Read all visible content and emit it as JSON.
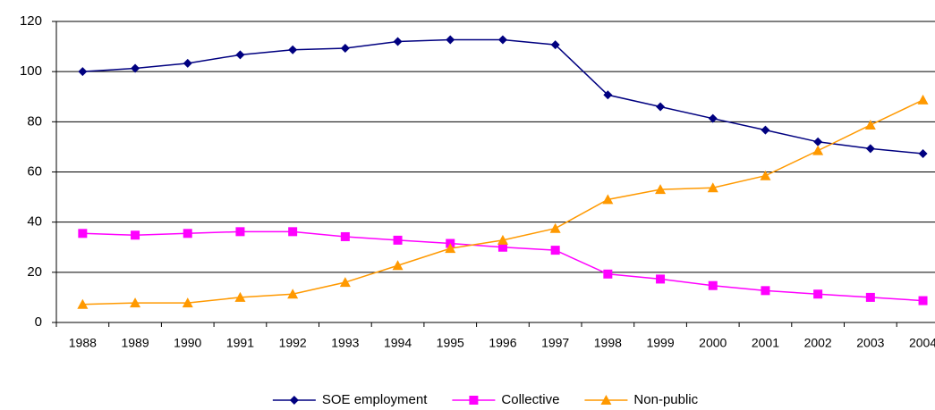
{
  "chart_data": {
    "type": "line",
    "categories": [
      "1988",
      "1989",
      "1990",
      "1991",
      "1992",
      "1993",
      "1994",
      "1995",
      "1996",
      "1997",
      "1998",
      "1999",
      "2000",
      "2001",
      "2002",
      "2003",
      "2004"
    ],
    "series": [
      {
        "name": "SOE employment",
        "color": "#000080",
        "marker": "diamond",
        "values": [
          100,
          101.3,
          103.3,
          106.7,
          108.7,
          109.3,
          112,
          112.7,
          112.7,
          110.7,
          90.7,
          86,
          81.3,
          76.7,
          72,
          69.3,
          67.3
        ]
      },
      {
        "name": "Collective",
        "color": "#ff00ff",
        "marker": "square",
        "values": [
          35.5,
          34.8,
          35.5,
          36.2,
          36.2,
          34.2,
          32.8,
          31.5,
          30,
          28.8,
          19.3,
          17.3,
          14.7,
          12.7,
          11.3,
          10,
          8.7
        ]
      },
      {
        "name": "Non-public",
        "color": "#ff9900",
        "marker": "triangle",
        "values": [
          7.2,
          7.8,
          7.8,
          10,
          11.3,
          16,
          22.7,
          29.5,
          32.8,
          37.5,
          49,
          53,
          53.7,
          58.5,
          68.5,
          78.7,
          88.7
        ]
      }
    ],
    "ylim": [
      0,
      120
    ],
    "yticks": [
      0,
      20,
      40,
      60,
      80,
      100,
      120
    ],
    "grid": true,
    "legend": "bottom"
  }
}
